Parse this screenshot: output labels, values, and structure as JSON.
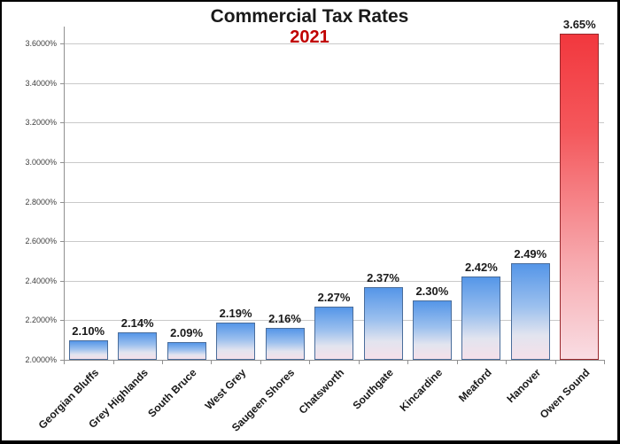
{
  "title": "Commercial Tax Rates",
  "subtitle": "2021",
  "colors": {
    "title": "#1a1a1a",
    "subtitle": "#c00000",
    "gridline": "#c9c9c9",
    "axis": "#909090",
    "tick_label": "#3f3f3f",
    "value_label": "#1a1a1a",
    "bar_border": "#4a6d9b",
    "bar_highlight_border": "#99282c"
  },
  "chart_data": {
    "type": "bar",
    "title": "Commercial Tax Rates",
    "subtitle": "2021",
    "categories": [
      "Georgian Bluffs",
      "Grey Highlands",
      "South Bruce",
      "West Grey",
      "Saugeen Shores",
      "Chatsworth",
      "Southgate",
      "Kincardine",
      "Meaford",
      "Hanover",
      "Owen Sound"
    ],
    "values": [
      2.1,
      2.14,
      2.09,
      2.19,
      2.16,
      2.27,
      2.37,
      2.3,
      2.42,
      2.49,
      3.65
    ],
    "value_labels": [
      "2.10%",
      "2.14%",
      "2.09%",
      "2.19%",
      "2.16%",
      "2.27%",
      "2.37%",
      "2.30%",
      "2.42%",
      "2.49%",
      "3.65%"
    ],
    "highlighted_category": "Owen Sound",
    "y_ticks": [
      {
        "value": 2.0,
        "label": "2.0000%"
      },
      {
        "value": 2.2,
        "label": "2.2000%"
      },
      {
        "value": 2.4,
        "label": "2.4000%"
      },
      {
        "value": 2.6,
        "label": "2.6000%"
      },
      {
        "value": 2.8,
        "label": "2.8000%"
      },
      {
        "value": 3.0,
        "label": "3.0000%"
      },
      {
        "value": 3.2,
        "label": "3.2000%"
      },
      {
        "value": 3.4,
        "label": "3.4000%"
      },
      {
        "value": 3.6,
        "label": "3.6000%"
      }
    ],
    "ylim": [
      2.0,
      3.686
    ],
    "grid": true,
    "legend": false,
    "bar_gradient": {
      "stops": [
        0,
        45,
        75,
        100
      ],
      "colors": [
        "#5596e8",
        "#9cc0ee",
        "#e2e4ef",
        "#f5e0e9"
      ]
    },
    "highlight_gradient": {
      "stops": [
        0,
        30,
        70,
        100
      ],
      "colors": [
        "#f2383e",
        "#f4585c",
        "#f7a9ae",
        "#f9dde3"
      ]
    }
  }
}
